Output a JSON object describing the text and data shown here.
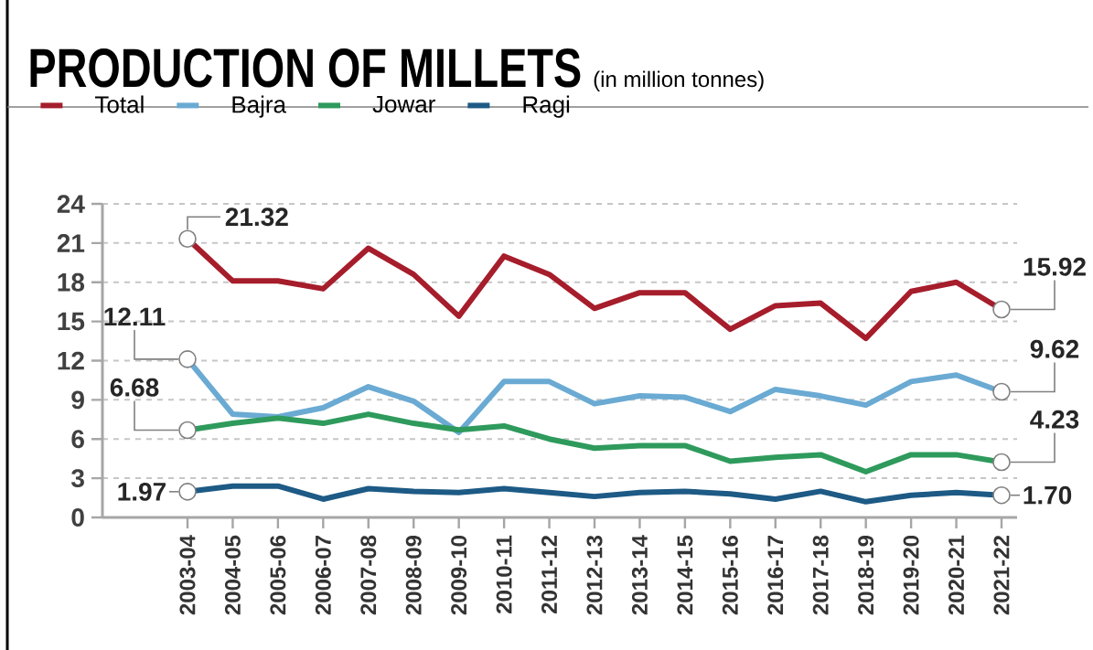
{
  "chart_data": {
    "type": "line",
    "title": "PRODUCTION OF MILLETS",
    "subtitle": "(in million tonnes)",
    "categories": [
      "2003-04",
      "2004-05",
      "2005-06",
      "2006-07",
      "2007-08",
      "2008-09",
      "2009-10",
      "2010-11",
      "2011-12",
      "2012-13",
      "2013-14",
      "2014-15",
      "2015-16",
      "2016-17",
      "2017-18",
      "2018-19",
      "2019-20",
      "2020-21",
      "2021-22"
    ],
    "series": [
      {
        "name": "Total",
        "color": "#a61d2b",
        "values": [
          21.32,
          18.1,
          18.1,
          17.5,
          20.6,
          18.6,
          15.4,
          20.0,
          18.6,
          16.0,
          17.2,
          17.2,
          14.4,
          16.2,
          16.4,
          13.7,
          17.3,
          18.0,
          15.92
        ]
      },
      {
        "name": "Bajra",
        "color": "#6aaad3",
        "values": [
          12.11,
          7.9,
          7.7,
          8.4,
          10.0,
          8.9,
          6.5,
          10.4,
          10.4,
          8.7,
          9.3,
          9.2,
          8.1,
          9.8,
          9.3,
          8.6,
          10.4,
          10.9,
          9.62
        ]
      },
      {
        "name": "Jowar",
        "color": "#2e9a5c",
        "values": [
          6.68,
          7.2,
          7.6,
          7.2,
          7.9,
          7.2,
          6.7,
          7.0,
          6.0,
          5.3,
          5.5,
          5.5,
          4.3,
          4.6,
          4.8,
          3.5,
          4.8,
          4.8,
          4.23
        ]
      },
      {
        "name": "Ragi",
        "color": "#1d5a85",
        "values": [
          1.97,
          2.4,
          2.4,
          1.4,
          2.2,
          2.0,
          1.9,
          2.2,
          1.9,
          1.6,
          1.9,
          2.0,
          1.8,
          1.4,
          2.0,
          1.2,
          1.7,
          1.9,
          1.7
        ]
      }
    ],
    "ylim": [
      0,
      24
    ],
    "yticks": [
      0,
      3,
      6,
      9,
      12,
      15,
      18,
      21,
      24
    ],
    "grid": "y",
    "legend": "top left",
    "annotations": [
      {
        "text": "21.32",
        "x": "2003-04",
        "y": 21.32
      },
      {
        "text": "12.11",
        "x": "2003-04",
        "y": 12.11
      },
      {
        "text": "6.68",
        "x": "2003-04",
        "y": 6.68
      },
      {
        "text": "1.97",
        "x": "2003-04",
        "y": 1.97
      },
      {
        "text": "15.92",
        "x": "2021-22",
        "y": 15.92
      },
      {
        "text": "9.62",
        "x": "2021-22",
        "y": 9.62
      },
      {
        "text": "4.23",
        "x": "2021-22",
        "y": 4.23
      },
      {
        "text": "1.70",
        "x": "2021-22",
        "y": 1.7
      }
    ]
  }
}
